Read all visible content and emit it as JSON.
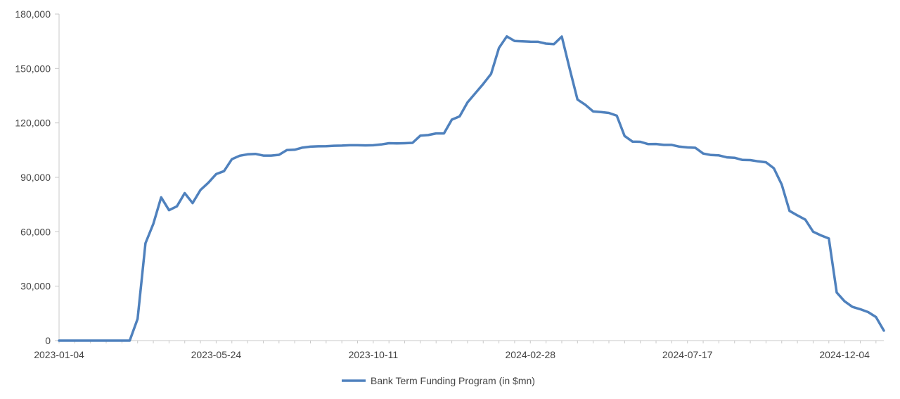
{
  "chart_data": {
    "type": "line",
    "title": "",
    "xlabel": "",
    "ylabel": "",
    "ylim": [
      0,
      180000
    ],
    "yticks": [
      "0",
      "30,000",
      "60,000",
      "90,000",
      "120,000",
      "150,000",
      "180,000"
    ],
    "xtick_labels": [
      "2023-01-04",
      "2023-05-24",
      "2023-10-11",
      "2024-02-28",
      "2024-07-17",
      "2024-12-04"
    ],
    "legend_position": "bottom",
    "grid": false,
    "series": [
      {
        "name": "Bank Term Funding Program (in $mn)",
        "color": "#4f81bd",
        "values": [
          0,
          0,
          0,
          0,
          0,
          0,
          0,
          0,
          0,
          0,
          12000,
          53700,
          64400,
          79000,
          71900,
          74000,
          81300,
          75800,
          83000,
          87000,
          91800,
          93400,
          100000,
          101900,
          102700,
          102900,
          102000,
          102000,
          102400,
          105000,
          105200,
          106400,
          106900,
          107100,
          107200,
          107400,
          107500,
          107700,
          107700,
          107600,
          107700,
          108100,
          108800,
          108700,
          108800,
          109000,
          113000,
          113300,
          114200,
          114200,
          121800,
          123600,
          131300,
          136400,
          141500,
          147000,
          161300,
          167700,
          165200,
          165000,
          164800,
          164700,
          163700,
          163400,
          167600,
          150000,
          132900,
          130000,
          126300,
          126000,
          125500,
          124000,
          112800,
          109700,
          109600,
          108300,
          108400,
          107900,
          107900,
          106900,
          106500,
          106300,
          103100,
          102300,
          102100,
          101000,
          100800,
          99600,
          99500,
          98800,
          98300,
          95000,
          86000,
          71500,
          69000,
          66700,
          60000,
          58000,
          56300,
          26500,
          21700,
          18600,
          17300,
          15700,
          13000,
          5500
        ]
      }
    ]
  }
}
